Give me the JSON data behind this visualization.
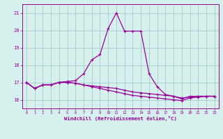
{
  "x": [
    0,
    1,
    2,
    3,
    4,
    5,
    6,
    7,
    8,
    9,
    10,
    11,
    12,
    13,
    14,
    15,
    16,
    17,
    18,
    19,
    20,
    21,
    22,
    23
  ],
  "line_main": [
    17.0,
    16.65,
    16.85,
    16.85,
    17.0,
    17.05,
    17.1,
    17.5,
    18.3,
    18.6,
    20.1,
    21.0,
    19.95,
    19.95,
    19.95,
    17.5,
    16.75,
    16.3,
    16.2,
    16.05,
    16.2,
    16.2,
    16.2,
    16.2
  ],
  "line_flat1": [
    17.0,
    16.65,
    16.85,
    16.85,
    17.0,
    17.0,
    16.95,
    16.85,
    16.8,
    16.75,
    16.7,
    16.65,
    16.55,
    16.45,
    16.4,
    16.35,
    16.3,
    16.25,
    16.2,
    16.1,
    16.15,
    16.2,
    16.2,
    16.2
  ],
  "line_flat2": [
    17.0,
    16.65,
    16.85,
    16.85,
    17.0,
    17.0,
    16.95,
    16.85,
    16.75,
    16.65,
    16.55,
    16.45,
    16.35,
    16.25,
    16.2,
    16.15,
    16.1,
    16.05,
    16.0,
    15.95,
    16.1,
    16.15,
    16.2,
    16.2
  ],
  "line_color": "#990099",
  "bg_color": "#d6f0ee",
  "grid_color": "#a8cccc",
  "xlabel": "Windchill (Refroidissement éolien,°C)",
  "ylim": [
    15.5,
    21.5
  ],
  "xlim": [
    -0.5,
    23.5
  ],
  "yticks": [
    16,
    17,
    18,
    19,
    20,
    21
  ],
  "xticks": [
    0,
    1,
    2,
    3,
    4,
    5,
    6,
    7,
    8,
    9,
    10,
    11,
    12,
    13,
    14,
    15,
    16,
    17,
    18,
    19,
    20,
    21,
    22,
    23
  ]
}
